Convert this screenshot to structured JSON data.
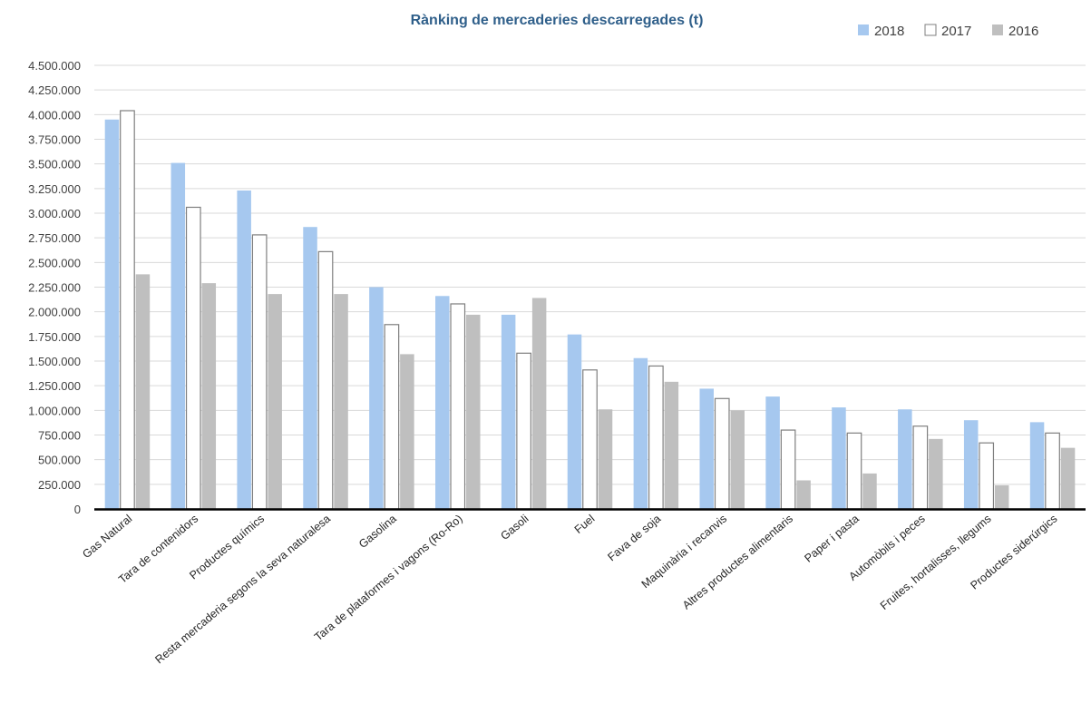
{
  "chart_data": {
    "type": "bar",
    "title": "Rànking de mercaderies descarregades (t)",
    "xlabel": "",
    "ylabel": "",
    "ylim": [
      0,
      4500000
    ],
    "y_ticks": [
      0,
      250000,
      500000,
      750000,
      1000000,
      1250000,
      1500000,
      1750000,
      2000000,
      2250000,
      2500000,
      2750000,
      3000000,
      3250000,
      3500000,
      3750000,
      4000000,
      4250000,
      4500000
    ],
    "y_tick_labels": [
      "0",
      "250.000",
      "500.000",
      "750.000",
      "1.000.000",
      "1.250.000",
      "1.500.000",
      "1.750.000",
      "2.000.000",
      "2.250.000",
      "2.500.000",
      "2.750.000",
      "3.000.000",
      "3.250.000",
      "3.500.000",
      "3.750.000",
      "4.000.000",
      "4.250.000",
      "4.500.000"
    ],
    "grid": true,
    "legend_position": "top-right",
    "categories": [
      "Gas Natural",
      "Tara de contenidors",
      "Productes químics",
      "Resta mercaderia segons la seva naturalesa",
      "Gasolina",
      "Tara de plataformes i vagons (Ro-Ro)",
      "Gasoli",
      "Fuel",
      "Fava de soja",
      "Maquinària i recanvis",
      "Altres productes alimentaris",
      "Paper i pasta",
      "Automòbils i peces",
      "Fruites, hortalisses, llegums",
      "Productes siderúrgics"
    ],
    "series": [
      {
        "name": "2018",
        "color": "#a6c8ef",
        "style": "filled",
        "values": [
          3950000,
          3510000,
          3230000,
          2860000,
          2250000,
          2160000,
          1970000,
          1770000,
          1530000,
          1220000,
          1140000,
          1030000,
          1010000,
          900000,
          880000
        ]
      },
      {
        "name": "2017",
        "color": "#ffffff",
        "stroke": "#7f7f7f",
        "style": "outline",
        "values": [
          4040000,
          3060000,
          2780000,
          2610000,
          1870000,
          2080000,
          1580000,
          1410000,
          1450000,
          1120000,
          800000,
          770000,
          840000,
          670000,
          770000
        ]
      },
      {
        "name": "2016",
        "color": "#bfbfbf",
        "style": "filled",
        "values": [
          2380000,
          2290000,
          2180000,
          2180000,
          1570000,
          1970000,
          2140000,
          1010000,
          1290000,
          1000000,
          290000,
          360000,
          710000,
          240000,
          620000
        ]
      }
    ]
  }
}
